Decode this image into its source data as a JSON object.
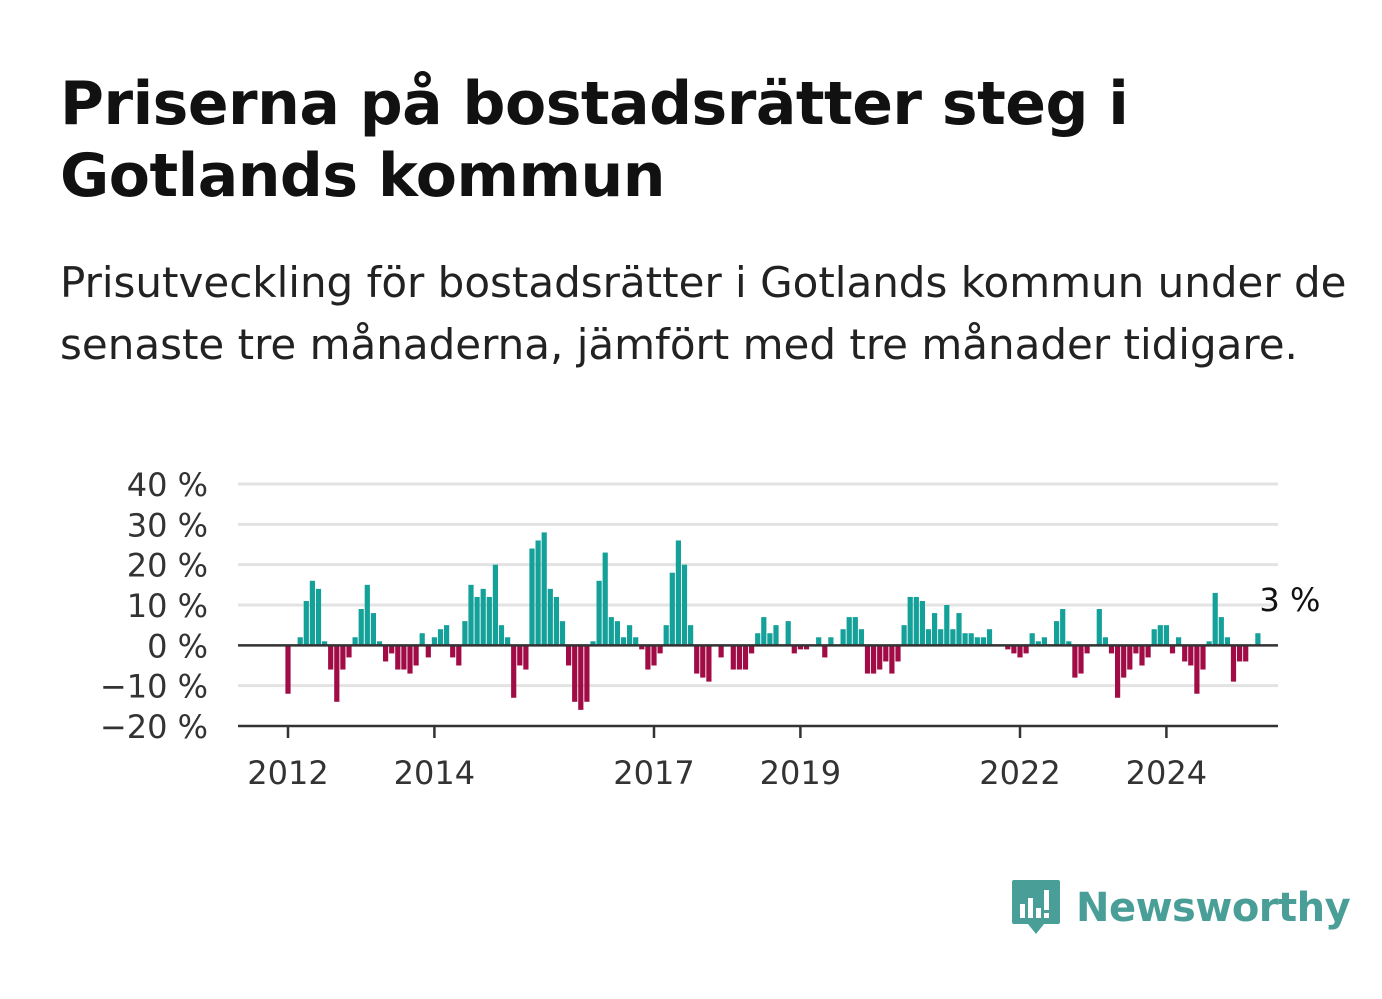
{
  "title": "Priserna på bostadsrätter steg i Gotlands kommun",
  "subtitle": "Prisutveckling för bostadsrätter i Gotlands kommun under de senaste tre månaderna, jämfört med tre månader tidigare.",
  "brand": {
    "name": "Newsworthy",
    "color": "#4a9e98"
  },
  "colors": {
    "positive": "#14a19a",
    "negative": "#a10c46"
  },
  "chart_data": {
    "type": "bar",
    "title": "Priserna på bostadsrätter steg i Gotlands kommun",
    "xlabel": "",
    "ylabel": "",
    "ylim": [
      -20,
      40
    ],
    "yticks": [
      {
        "value": 40,
        "label": "40 %"
      },
      {
        "value": 30,
        "label": "30 %"
      },
      {
        "value": 20,
        "label": "20 %"
      },
      {
        "value": 10,
        "label": "10 %"
      },
      {
        "value": 0,
        "label": "0 %"
      },
      {
        "value": -10,
        "label": "−10 %"
      },
      {
        "value": -20,
        "label": "−20 %"
      }
    ],
    "xticks": [
      {
        "date": "2012-01",
        "label": "2012"
      },
      {
        "date": "2014-01",
        "label": "2014"
      },
      {
        "date": "2017-01",
        "label": "2017"
      },
      {
        "date": "2019-01",
        "label": "2019"
      },
      {
        "date": "2022-01",
        "label": "2022"
      },
      {
        "date": "2024-01",
        "label": "2024"
      }
    ],
    "grid": true,
    "legend": "none",
    "start": "2012-01",
    "values": [
      -12,
      0,
      2,
      11,
      16,
      14,
      1,
      -6,
      -14,
      -6,
      -3,
      2,
      9,
      15,
      8,
      1,
      -4,
      -2,
      -6,
      -6,
      -7,
      -5,
      3,
      -3,
      2,
      4,
      5,
      -3,
      -5,
      6,
      15,
      12,
      14,
      12,
      20,
      5,
      2,
      -13,
      -5,
      -6,
      24,
      26,
      28,
      14,
      12,
      6,
      -5,
      -14,
      -16,
      -14,
      1,
      16,
      23,
      7,
      6,
      2,
      5,
      2,
      -1,
      -6,
      -5,
      -2,
      5,
      18,
      26,
      20,
      5,
      -7,
      -8,
      -9,
      0,
      -3,
      0,
      -6,
      -6,
      -6,
      -2,
      3,
      7,
      3,
      5,
      0,
      6,
      -2,
      -1,
      -1,
      0,
      2,
      -3,
      2,
      0,
      4,
      7,
      7,
      4,
      -7,
      -7,
      -6,
      -4,
      -7,
      -4,
      5,
      12,
      12,
      11,
      4,
      8,
      4,
      10,
      4,
      8,
      3,
      3,
      2,
      2,
      4,
      0,
      0,
      -1,
      -2,
      -3,
      -2,
      3,
      1,
      2,
      0,
      6,
      9,
      1,
      -8,
      -7,
      -2,
      0,
      9,
      2,
      -2,
      -13,
      -8,
      -6,
      -2,
      -5,
      -3,
      4,
      5,
      5,
      -2,
      2,
      -4,
      -5,
      -12,
      -6,
      1,
      13,
      7,
      2,
      -9,
      -4,
      -4,
      0,
      3
    ],
    "annotation": {
      "index": 159,
      "label": "3 %"
    }
  }
}
